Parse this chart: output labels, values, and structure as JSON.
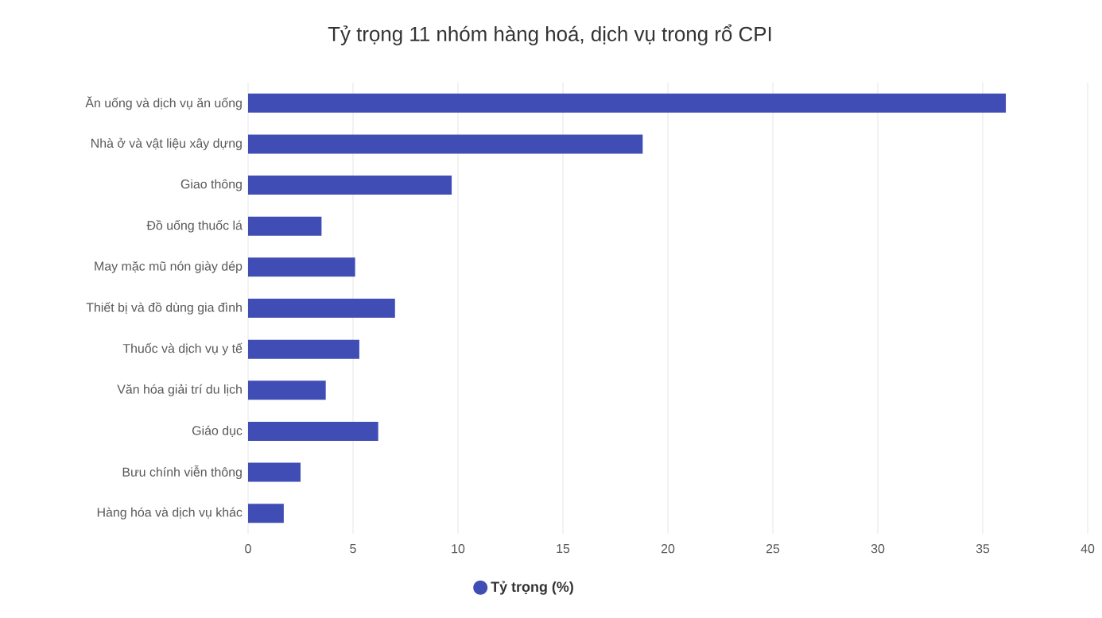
{
  "chart_data": {
    "type": "bar",
    "orientation": "horizontal",
    "title": "Tỷ trọng 11 nhóm hàng hoá, dịch vụ trong rổ CPI",
    "categories": [
      "Ăn uống và dịch vụ ăn uống",
      "Nhà ở và vật liệu xây dựng",
      "Giao thông",
      "Đồ uống thuốc lá",
      "May mặc mũ nón giày dép",
      "Thiết bị và đồ dùng gia đình",
      "Thuốc và dịch vụ y tế",
      "Văn hóa giải trí du lịch",
      "Giáo dục",
      "Bưu chính viễn thông",
      "Hàng hóa và dịch vụ khác"
    ],
    "series": [
      {
        "name": "Tỷ trọng (%)",
        "color": "#3f4db5",
        "values": [
          36.1,
          18.8,
          9.7,
          3.5,
          5.1,
          7.0,
          5.3,
          3.7,
          6.2,
          2.5,
          1.7
        ]
      }
    ],
    "xlim": [
      0,
      40
    ],
    "xticks": [
      0,
      5,
      10,
      15,
      20,
      25,
      30,
      35,
      40
    ],
    "grid": "x",
    "legend": "bottom"
  }
}
